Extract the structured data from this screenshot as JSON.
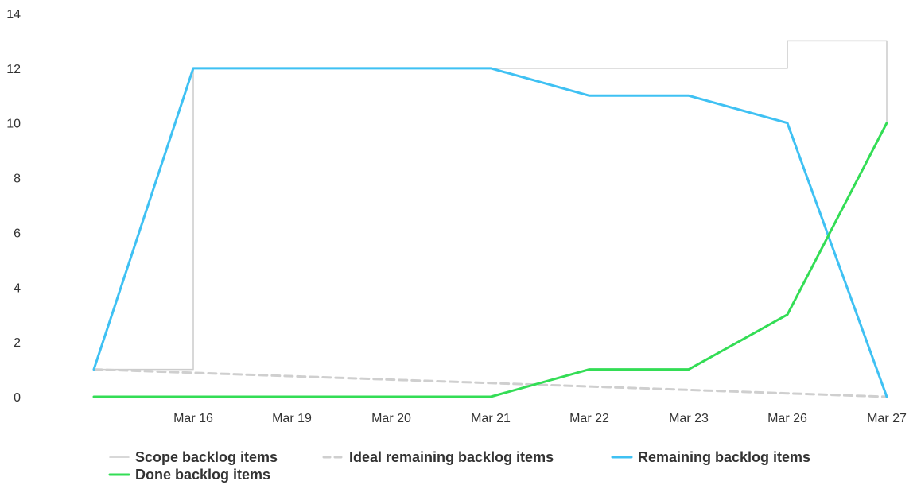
{
  "chart_data": {
    "type": "line",
    "title": "",
    "xlabel": "",
    "ylabel": "",
    "x": [
      "",
      "Mar 16",
      "Mar 19",
      "Mar 20",
      "Mar 21",
      "Mar 22",
      "Mar 23",
      "Mar 26",
      "Mar 27"
    ],
    "y_ticks": [
      0,
      2,
      4,
      6,
      8,
      10,
      12,
      14
    ],
    "ylim": [
      0,
      14
    ],
    "grid": false,
    "legend_position": "bottom-left",
    "series": [
      {
        "name": "Scope backlog items",
        "step": true,
        "style": "solid-thin",
        "color": "#cccccc",
        "values": [
          1,
          12,
          12,
          12,
          12,
          12,
          12,
          13,
          13
        ],
        "end_value": 10
      },
      {
        "name": "Ideal remaining backlog items",
        "style": "dashed",
        "color": "#cfcfcf",
        "values": [
          1,
          0.875,
          0.75,
          0.625,
          0.5,
          0.375,
          0.25,
          0.125,
          0
        ]
      },
      {
        "name": "Remaining backlog items",
        "style": "solid",
        "color": "#3fc1f3",
        "values": [
          1,
          12,
          12,
          12,
          12,
          11,
          11,
          10,
          0
        ]
      },
      {
        "name": "Done backlog items",
        "style": "solid",
        "color": "#33dd55",
        "values": [
          0,
          0,
          0,
          0,
          0,
          1,
          1,
          3,
          10
        ]
      }
    ]
  }
}
